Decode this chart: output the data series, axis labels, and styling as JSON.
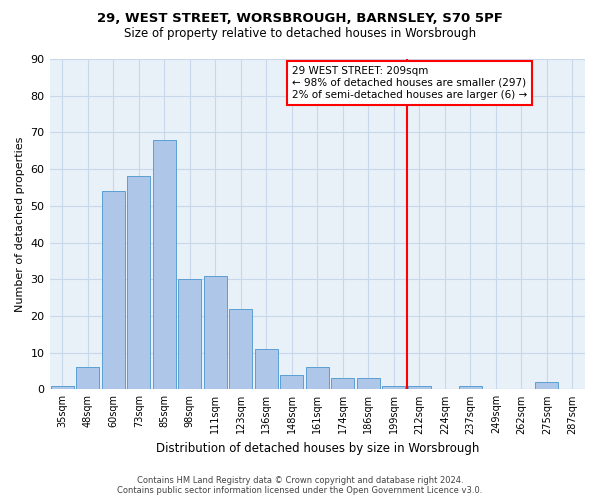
{
  "title_line1": "29, WEST STREET, WORSBROUGH, BARNSLEY, S70 5PF",
  "title_line2": "Size of property relative to detached houses in Worsbrough",
  "xlabel": "Distribution of detached houses by size in Worsbrough",
  "ylabel": "Number of detached properties",
  "bar_labels": [
    "35sqm",
    "48sqm",
    "60sqm",
    "73sqm",
    "85sqm",
    "98sqm",
    "111sqm",
    "123sqm",
    "136sqm",
    "148sqm",
    "161sqm",
    "174sqm",
    "186sqm",
    "199sqm",
    "212sqm",
    "224sqm",
    "237sqm",
    "249sqm",
    "262sqm",
    "275sqm",
    "287sqm"
  ],
  "bar_values": [
    1,
    6,
    54,
    58,
    68,
    30,
    31,
    22,
    11,
    4,
    6,
    3,
    3,
    1,
    1,
    0,
    1,
    0,
    0,
    2,
    0
  ],
  "bar_color": "#aec6e8",
  "bar_edge_color": "#5a9fd4",
  "annotation_line1": "29 WEST STREET: 209sqm",
  "annotation_line2": "← 98% of detached houses are smaller (297)",
  "annotation_line3": "2% of semi-detached houses are larger (6) →",
  "vline_x_index": 14.0,
  "ylim": [
    0,
    90
  ],
  "yticks": [
    0,
    10,
    20,
    30,
    40,
    50,
    60,
    70,
    80,
    90
  ],
  "background_color": "#e8f0f8",
  "grid_color": "#c8d8ea",
  "footnote_line1": "Contains HM Land Registry data © Crown copyright and database right 2024.",
  "footnote_line2": "Contains public sector information licensed under the Open Government Licence v3.0."
}
